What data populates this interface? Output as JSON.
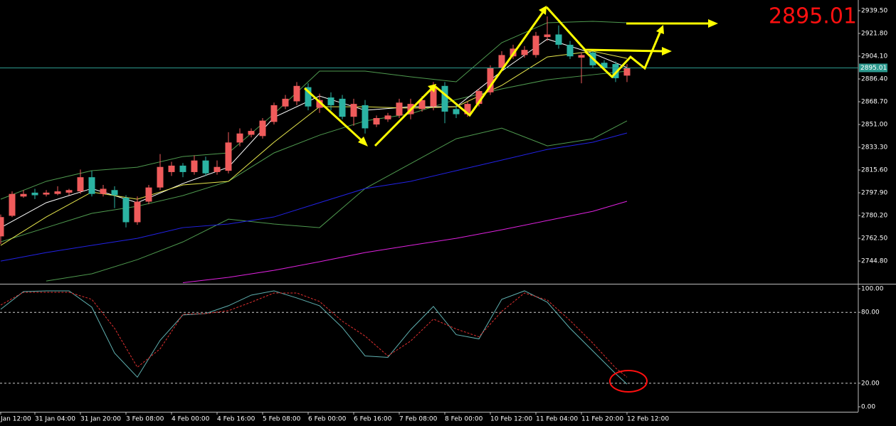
{
  "chart_data": [
    {
      "type": "candlestick",
      "categories": [
        "Jan 12:00",
        null,
        null,
        "31 Jan 04:00",
        null,
        null,
        null,
        "31 Jan 20:00",
        null,
        null,
        null,
        "3 Feb 08:00",
        null,
        null,
        null,
        "4 Feb 00:00",
        null,
        null,
        null,
        "4 Feb 16:00",
        null,
        null,
        null,
        "5 Feb 08:00",
        null,
        null,
        null,
        "6 Feb 00:00",
        null,
        null,
        null,
        "6 Feb 16:00",
        null,
        null,
        null,
        "7 Feb 08:00",
        null,
        null,
        null,
        "8 Feb 00:00",
        null,
        null,
        null,
        "10 Feb 12:00",
        null,
        null,
        null,
        "11 Feb 04:00",
        null,
        null,
        null,
        "11 Feb 20:00",
        null,
        null,
        null,
        "12 Feb 12:00"
      ],
      "open": [
        2764,
        2780,
        2795,
        2798,
        2796.5,
        2797,
        2798,
        2799,
        2810,
        2797,
        2800,
        2794,
        2775,
        2791,
        2802,
        2814,
        2819,
        2814,
        2823,
        2814,
        2815,
        2837,
        2843,
        2842,
        2853,
        2865,
        2869,
        2880,
        2864,
        2872,
        2871,
        2857,
        2866,
        2851,
        2855,
        2858,
        2859,
        2863,
        2865,
        2881,
        2863,
        2859,
        2867,
        2876,
        2895,
        2904,
        2905,
        2905,
        2919,
        2921,
        2913,
        2903,
        2907,
        2899,
        2898,
        2889
      ],
      "high": [
        2781,
        2799,
        2800,
        2801,
        2800,
        2803,
        2801,
        2816,
        2815,
        2804,
        2803,
        2796,
        2795,
        2804,
        2828,
        2822,
        2821,
        2827,
        2826,
        2823,
        2845,
        2848,
        2848,
        2856,
        2868,
        2874,
        2884,
        2883,
        2875,
        2876,
        2874,
        2871,
        2870,
        2858,
        2860,
        2871,
        2871,
        2873,
        2884,
        2884,
        2866,
        2869,
        2879,
        2897,
        2908,
        2913,
        2912,
        2923,
        2935,
        2928,
        2916,
        2907,
        2909,
        2901,
        2900,
        2898
      ],
      "low": [
        2758,
        2779,
        2794,
        2793,
        2795,
        2796,
        2796,
        2797,
        2795,
        2795,
        2786,
        2771,
        2773,
        2789,
        2800,
        2811,
        2810,
        2812,
        2811,
        2812,
        2813,
        2834,
        2841,
        2840,
        2851,
        2863,
        2866,
        2862,
        2860,
        2862,
        2855,
        2850,
        2844,
        2849,
        2853,
        2856,
        2855,
        2861,
        2862,
        2852,
        2856,
        2857,
        2865,
        2874,
        2893,
        2902,
        2903,
        2903,
        2916,
        2910,
        2902,
        2883,
        2895,
        2893,
        2884,
        2884
      ],
      "close": [
        2779,
        2797,
        2797,
        2796,
        2798,
        2799,
        2800,
        2810,
        2797,
        2801,
        2796,
        2775,
        2791,
        2802,
        2818,
        2819,
        2814,
        2823,
        2813,
        2818,
        2837,
        2844,
        2846,
        2854,
        2866,
        2871,
        2881,
        2865,
        2870,
        2866,
        2857,
        2867,
        2848,
        2856,
        2858,
        2868,
        2867,
        2870,
        2881,
        2861,
        2859,
        2867,
        2877,
        2895,
        2905,
        2910,
        2909,
        2920,
        2921,
        2913,
        2904,
        2905,
        2897,
        2895,
        2887,
        2895.01
      ],
      "up_color": "#ef5b5b",
      "down_color": "#2bb3a3",
      "lines": [
        {
          "color": "#4f9a4f",
          "x": [
            0,
            4,
            8,
            12,
            16,
            20,
            24,
            28,
            32,
            36,
            40,
            44,
            48,
            52,
            55
          ],
          "values": [
            2792.9,
            2806.8,
            2815.1,
            2817.8,
            2826.1,
            2828.9,
            2859.3,
            2892.5,
            2892.5,
            2888.1,
            2884.2,
            2914.6,
            2930.1,
            2931.2,
            2930.1
          ]
        },
        {
          "color": "#4f9a4f",
          "x": [
            0,
            4,
            8,
            12,
            16,
            20,
            24,
            28,
            32,
            36,
            40,
            44,
            48,
            52,
            55
          ],
          "values": [
            2759.7,
            2770.8,
            2781.9,
            2787.4,
            2795.7,
            2806.8,
            2828.9,
            2842.7,
            2853.8,
            2859.3,
            2870.4,
            2878.7,
            2885.8,
            2889.7,
            2892.5
          ]
        },
        {
          "color": "#4f9a4f",
          "x": [
            4,
            8,
            12,
            16,
            20,
            24,
            28,
            32,
            36,
            40,
            44,
            48,
            52,
            55
          ],
          "values": [
            2729.3,
            2734.9,
            2745.9,
            2759.7,
            2777.4,
            2773.6,
            2770.8,
            2801.2,
            2820.6,
            2839.9,
            2848.2,
            2834.4,
            2839.9,
            2853.8
          ]
        },
        {
          "color": "#ffffff",
          "x": [
            0,
            4,
            8,
            12,
            16,
            20,
            24,
            28,
            32,
            36,
            40,
            44,
            48,
            52,
            55
          ],
          "values": [
            2770.8,
            2790.2,
            2801.2,
            2790.2,
            2805.1,
            2817.8,
            2856.5,
            2873.1,
            2862.1,
            2864.8,
            2864.8,
            2892.5,
            2917.4,
            2906.3,
            2895.3
          ]
        },
        {
          "color": "#e6e64c",
          "x": [
            0,
            4,
            8,
            12,
            16,
            20,
            24,
            28,
            32,
            36,
            40,
            44,
            48,
            52,
            55
          ],
          "values": [
            2757.0,
            2779.1,
            2798.5,
            2792.9,
            2804.0,
            2806.8,
            2837.2,
            2864.8,
            2864.8,
            2863.7,
            2864.8,
            2881.4,
            2903.5,
            2908.0,
            2902.4
          ]
        },
        {
          "color": "#2222e6",
          "x": [
            0,
            4,
            8,
            12,
            16,
            20,
            24,
            28,
            32,
            36,
            40,
            44,
            48,
            52,
            55
          ],
          "values": [
            2744.8,
            2751.4,
            2757.0,
            2762.5,
            2770.8,
            2773.6,
            2779.1,
            2790.2,
            2801.2,
            2806.8,
            2815.1,
            2823.3,
            2831.6,
            2837.2,
            2844.4
          ]
        },
        {
          "color": "#e022e0",
          "x": [
            16,
            20,
            24,
            28,
            32,
            36,
            40,
            44,
            48,
            52,
            55
          ],
          "values": [
            2728,
            2732.1,
            2737.6,
            2744.3,
            2751.4,
            2757.0,
            2762.5,
            2769.1,
            2776.3,
            2783.5,
            2791.3
          ]
        }
      ],
      "current_price": 2895.01,
      "current_color": "#2d9a8f",
      "big_label_color": "#ff1010",
      "ylim": [
        2727.7,
        2947.8
      ],
      "yticks": [
        {
          "value": 2939.5,
          "label": "2939.50"
        },
        {
          "value": 2921.8,
          "label": "2921.80"
        },
        {
          "value": 2904.1,
          "label": "2904.10"
        },
        {
          "value": 2886.4,
          "label": "2886.40"
        },
        {
          "value": 2868.7,
          "label": "2868.70"
        },
        {
          "value": 2851,
          "label": "2851.00"
        },
        {
          "value": 2833.3,
          "label": "2833.30"
        },
        {
          "value": 2815.6,
          "label": "2815.60"
        },
        {
          "value": 2797.9,
          "label": "2797.90"
        },
        {
          "value": 2780.2,
          "label": "2780.20"
        },
        {
          "value": 2762.5,
          "label": "2762.50"
        },
        {
          "value": 2744.8,
          "label": "2744.80"
        }
      ],
      "grid": false
    },
    {
      "type": "line",
      "x": [
        0,
        2,
        4,
        6,
        8,
        10,
        12,
        14,
        16,
        18,
        20,
        22,
        24,
        26,
        28,
        30,
        32,
        34,
        36,
        38,
        40,
        42,
        44,
        46,
        48,
        50,
        52,
        54,
        55
      ],
      "series": [
        {
          "color": "#5fb0b0",
          "dashed": false,
          "values": [
            82.6,
            97.6,
            98.2,
            98.2,
            84.4,
            45.5,
            25.1,
            56.3,
            77.8,
            79.0,
            85.6,
            94.6,
            98.2,
            92.2,
            85.6,
            67.1,
            43.1,
            41.9,
            65.3,
            85.0,
            61.1,
            57.5,
            91.0,
            98.2,
            88.6,
            66.5,
            47.3,
            28.1,
            19.2
          ]
        },
        {
          "color": "#e03030",
          "dashed": true,
          "values": [
            86.2,
            97.0,
            97.0,
            97.0,
            91.0,
            66.5,
            33.5,
            49.1,
            78.4,
            79.0,
            81.4,
            88.6,
            96.4,
            96.4,
            89.2,
            72.5,
            59.9,
            43.1,
            55.7,
            74.3,
            65.9,
            59.3,
            80.8,
            96.4,
            90.4,
            73.1,
            53.9,
            32.9,
            25.1
          ]
        }
      ],
      "ylim": [
        -3.6,
        103
      ],
      "yticks": [
        {
          "value": 100,
          "label": "100.00"
        },
        {
          "value": 80,
          "label": "80.00"
        },
        {
          "value": 20,
          "label": "20.00"
        },
        {
          "value": 0,
          "label": "0.00"
        }
      ],
      "levels": [
        80,
        20
      ]
    }
  ]
}
